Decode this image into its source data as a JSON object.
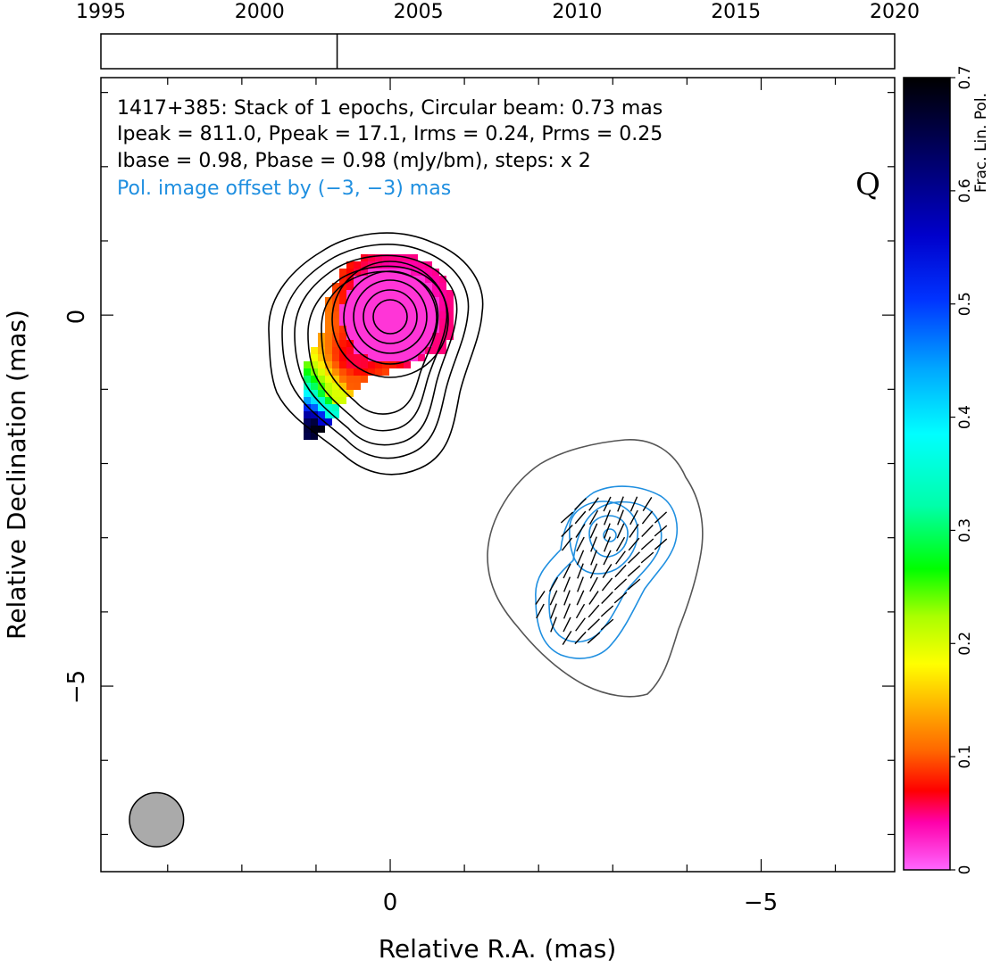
{
  "timeline": {
    "ticks": [
      "1995",
      "2000",
      "2005",
      "2010",
      "2015",
      "2020"
    ],
    "range": [
      1995,
      2020
    ],
    "epoch_markers": [
      2002.44
    ]
  },
  "chart_data": {
    "type": "heatmap",
    "title": "",
    "xlabel": "Relative R.A. (mas)",
    "ylabel": "Relative Declination (mas)",
    "x_ticks": [
      "0",
      "−5"
    ],
    "y_ticks": [
      "0",
      "−5"
    ],
    "xlim": [
      3.9,
      -6.8
    ],
    "ylim": [
      -7.5,
      3.2
    ],
    "annotations": {
      "line1": "1417+385: Stack of 1 epochs, Circular beam: 0.73 mas",
      "line2": "Ipeak = 811.0, Ppeak = 17.1, Irms = 0.24, Prms = 0.25",
      "line3": "Ibase = 0.98, Pbase = 0.98 (mJy/bm), steps: x 2",
      "line4": "Pol. image offset by (−3, −3) mas",
      "quality": "Q"
    },
    "beam": {
      "ra": 3.15,
      "dec": -6.8,
      "diameter_mas": 0.73,
      "color": "#aaaaaa"
    },
    "stokes_i_contours": {
      "center": [
        0,
        0
      ],
      "levels_mJy": [
        0.98,
        1.96,
        3.92,
        7.84,
        15.68,
        31.36,
        62.72,
        125.44,
        250.88,
        501.76
      ],
      "color": "#000000"
    },
    "polarization_contours": {
      "offset_mas": [
        -3,
        -3
      ],
      "color": "#1f8fe0",
      "outline_color": "#555555"
    },
    "colorbar": {
      "label": "Frac. Lin. Pol.",
      "range": [
        0,
        0.7
      ],
      "ticks": [
        "0",
        "0.1",
        "0.2",
        "0.3",
        "0.4",
        "0.5",
        "0.6",
        "0.7"
      ]
    },
    "fractional_pol_pixels": [
      {
        "ra": 0.0,
        "dec": 0.0,
        "frac": 0.02
      },
      {
        "ra": -0.5,
        "dec": -0.5,
        "frac": 0.05
      },
      {
        "ra": 0.5,
        "dec": -0.6,
        "frac": 0.06
      },
      {
        "ra": 0.55,
        "dec": -0.85,
        "frac": 0.1
      },
      {
        "ra": 0.75,
        "dec": -1.05,
        "frac": 0.2
      },
      {
        "ra": 0.85,
        "dec": -1.25,
        "frac": 0.35
      },
      {
        "ra": 0.95,
        "dec": -1.4,
        "frac": 0.55
      },
      {
        "ra": 1.0,
        "dec": -1.45,
        "frac": 0.7
      }
    ],
    "evpa_field": {
      "region": "offset component",
      "mean_angle_deg": 55
    }
  }
}
